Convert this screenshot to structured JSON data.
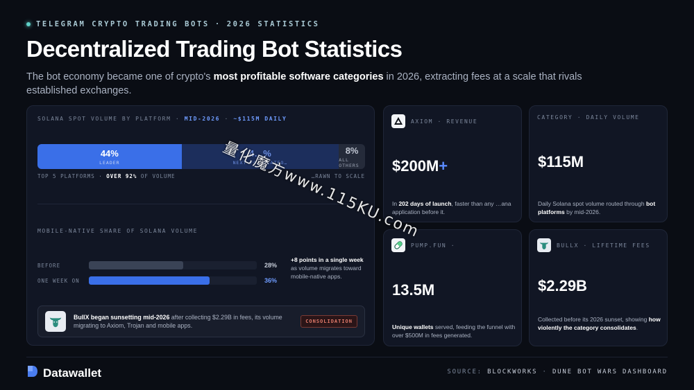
{
  "header": {
    "eyebrow_left": "TELEGRAM CRYPTO TRADING BOTS",
    "eyebrow_sep": "·",
    "eyebrow_right": "2026 STATISTICS",
    "title": "Decentralized Trading Bot Statistics",
    "subtitle_pre": "The bot economy became one of crypto's ",
    "subtitle_bold": "most profitable software categories",
    "subtitle_post": " in 2026, extracting fees at a scale that rivals established exchanges."
  },
  "volume_panel": {
    "label_a": "SOLANA SPOT VOLUME BY PLATFORM",
    "label_sep": "·",
    "label_b": "MID-2026",
    "label_c": "~$115M DAILY",
    "segments": [
      {
        "pct": "44%",
        "sub": "LEADER",
        "share": 44
      },
      {
        "pct": "4…%",
        "sub": "NEXT FO… PLATFO…",
        "share": 48
      },
      {
        "pct": "8%",
        "sub": "ALL OTHERS",
        "share": 8
      }
    ],
    "foot_left_pre": "TOP 5 PLATFORMS · ",
    "foot_left_bold": "OVER 92%",
    "foot_left_post": " OF VOLUME",
    "foot_right": "…RAWN TO SCALE"
  },
  "mobile_panel": {
    "label": "MOBILE-NATIVE SHARE OF SOLANA VOLUME",
    "rows": [
      {
        "label": "BEFORE",
        "value": "28%",
        "fraction": 0.28,
        "color": "#3a4356",
        "val_color": "#c6ccd8"
      },
      {
        "label": "ONE WEEK ON",
        "value": "36%",
        "fraction": 0.36,
        "color": "#3a6fe8",
        "val_color": "#6f9cff"
      }
    ],
    "note_bold": "+8 points in a single week",
    "note_post": " as volume migrates toward mobile-native apps."
  },
  "callout": {
    "bold": "BullX began sunsetting mid-2026",
    "text": " after collecting $2.29B in fees, its volume migrating to Axiom, Trojan and mobile apps.",
    "badge": "CONSOLIDATION"
  },
  "cards": {
    "axiom": {
      "label": "AXIOM · REVENUE",
      "value": "$200M",
      "plus": "+",
      "desc_pre": "In ",
      "desc_bold": "202 days of launch",
      "desc_post": ", faster than any …ana application before it."
    },
    "category": {
      "label": "CATEGORY · DAILY VOLUME",
      "value": "$115M",
      "desc_pre": "Daily Solana spot volume routed through ",
      "desc_bold": "bot platforms",
      "desc_post": " by mid-2026."
    },
    "pump": {
      "label": "PUMP.FUN ·",
      "value": "13.5M",
      "desc_bold": "Unique wallets",
      "desc_post": " served, feeding the funnel with over $500M in fees generated."
    },
    "bullx": {
      "label": "BULLX · LIFETIME FEES",
      "value": "$2.29B",
      "desc_pre": "Collected before its 2026 sunset, showing ",
      "desc_bold": "how violently the category consolidates",
      "desc_post": "."
    }
  },
  "footer": {
    "brand": "Datawallet",
    "source_label": "SOURCE:",
    "source_a": "BLOCKWORKS",
    "source_sep": "·",
    "source_b": "DUNE BOT WARS DASHBOARD"
  },
  "watermark": "量化魔方www.115KU.com",
  "colors": {
    "accent": "#3a6fe8",
    "accent_light": "#5b8cff",
    "badge": "#e07a6a"
  }
}
